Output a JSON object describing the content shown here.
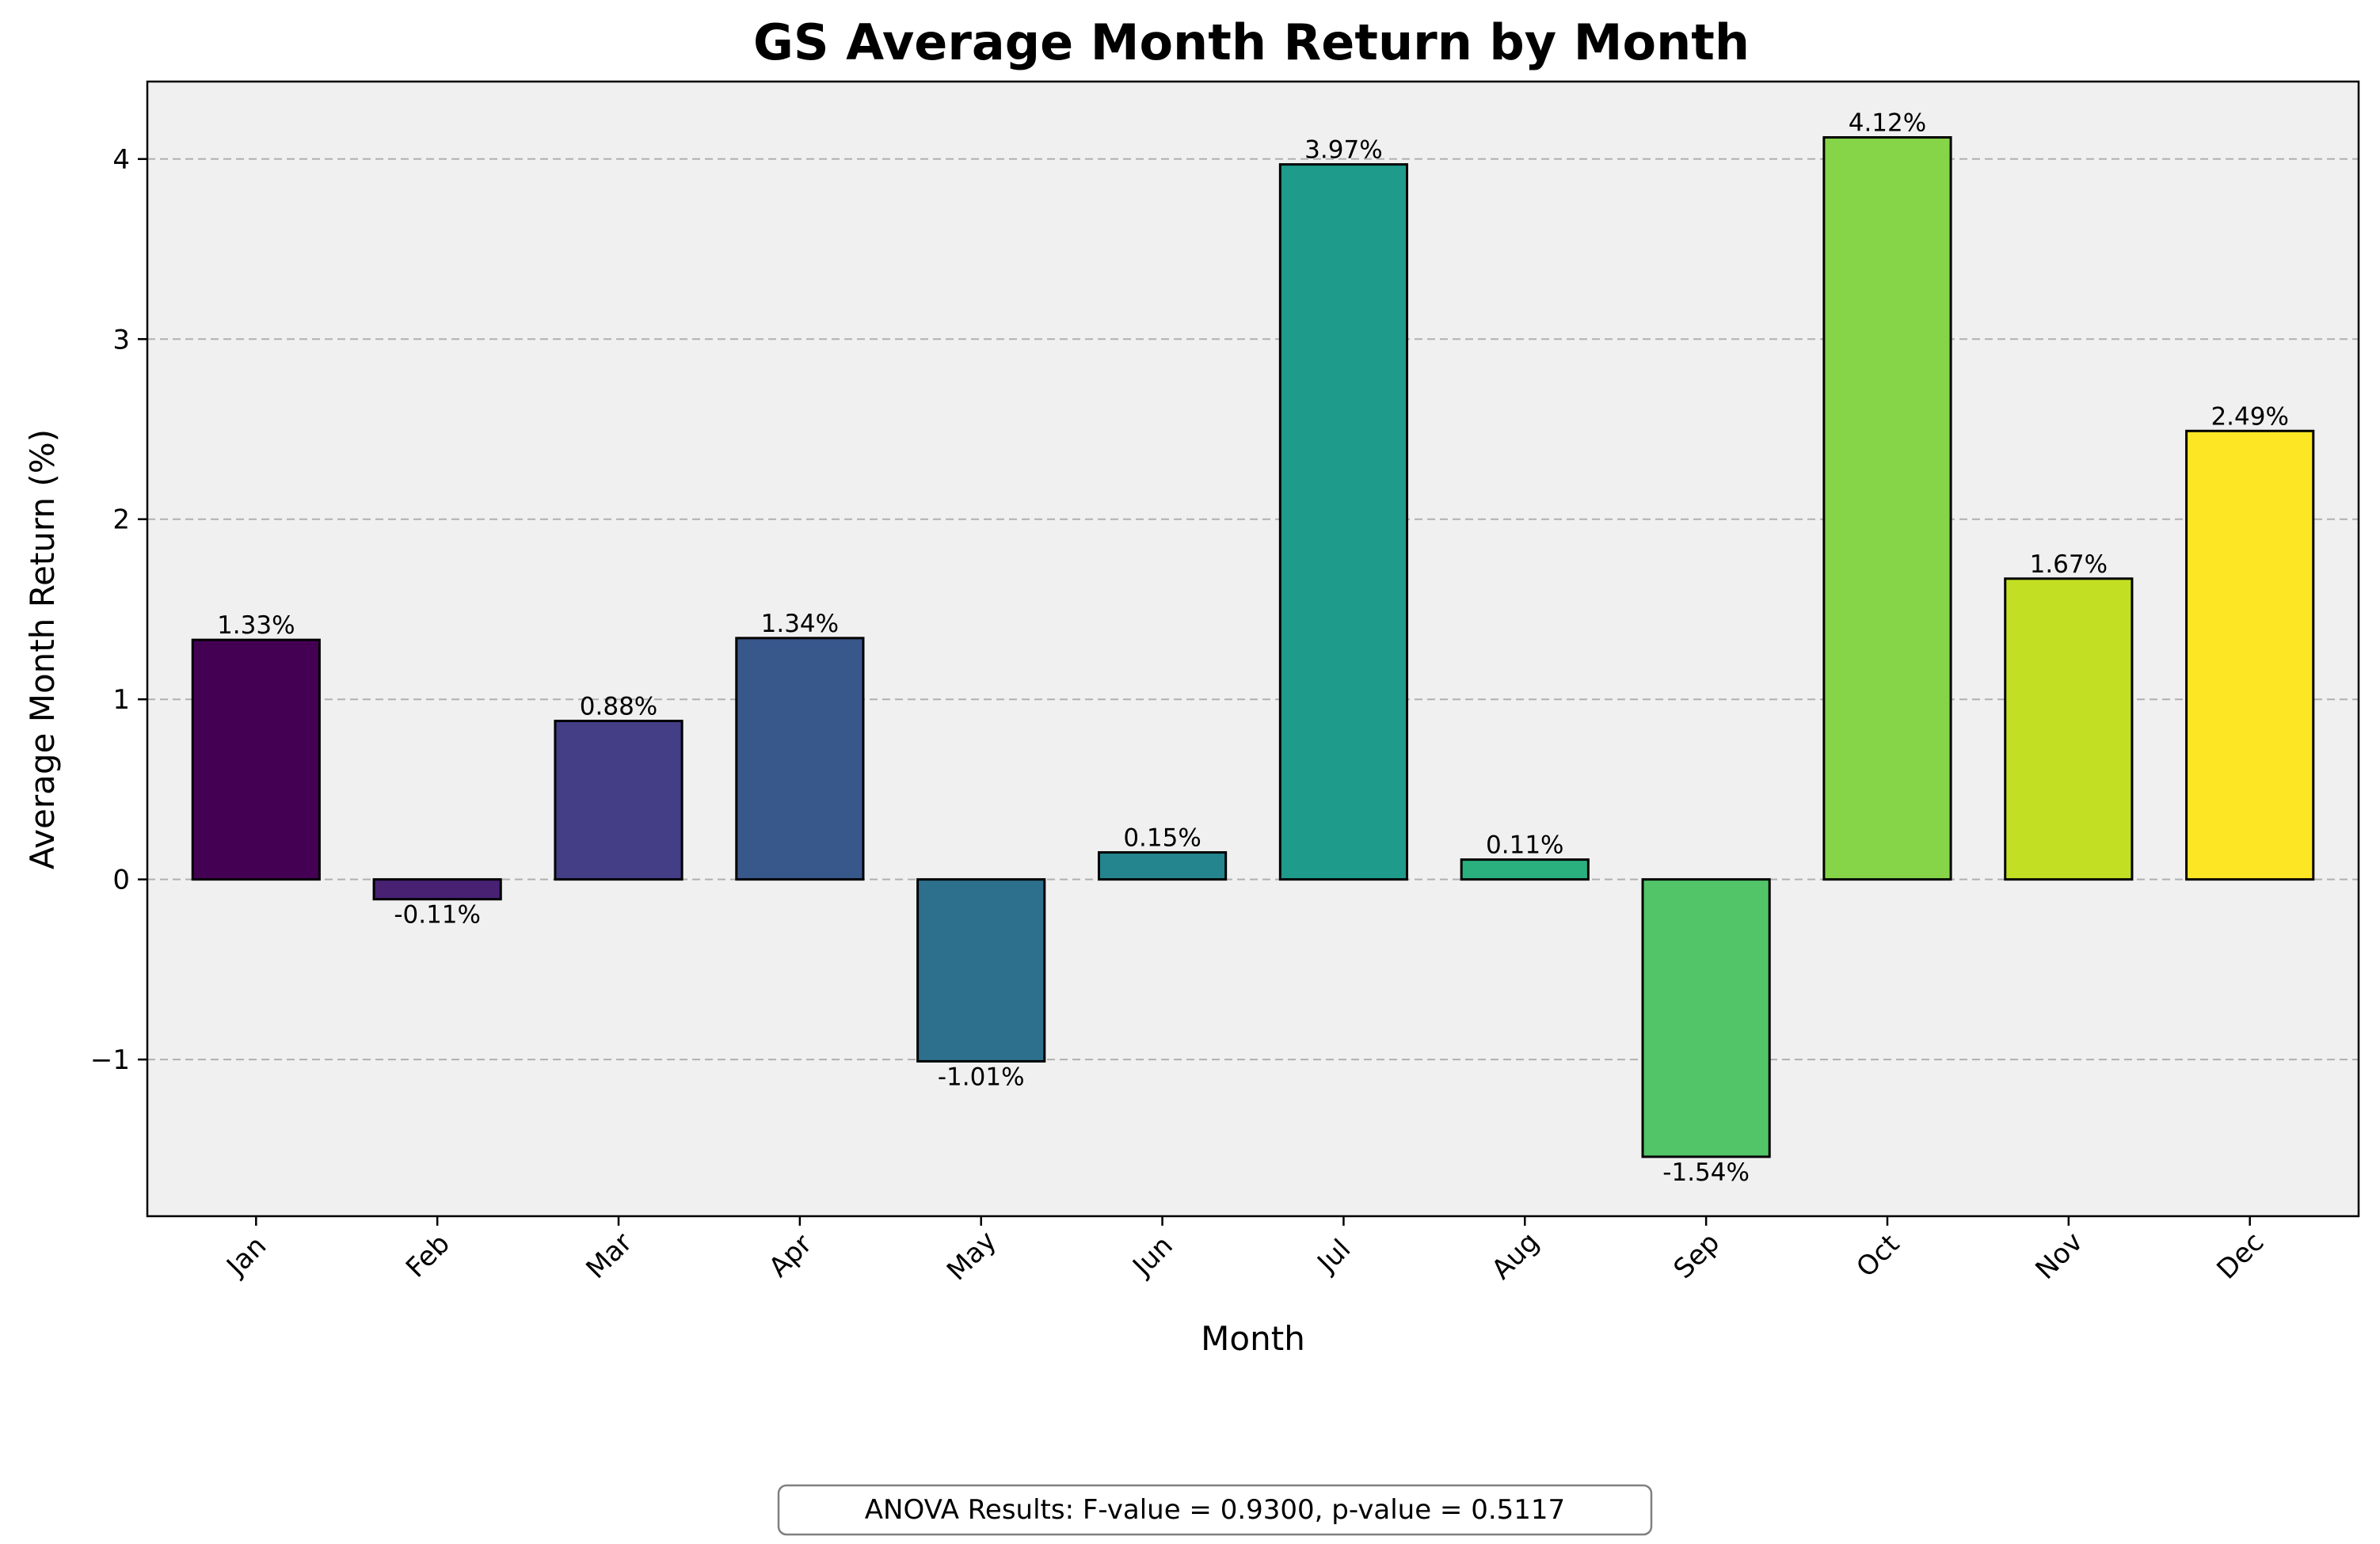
{
  "chart_data": {
    "type": "bar",
    "title": "GS Average Month Return by Month",
    "xlabel": "Month",
    "ylabel": "Average Month Return (%)",
    "categories": [
      "Jan",
      "Feb",
      "Mar",
      "Apr",
      "May",
      "Jun",
      "Jul",
      "Aug",
      "Sep",
      "Oct",
      "Nov",
      "Dec"
    ],
    "values": [
      1.33,
      -0.11,
      0.88,
      1.34,
      -1.01,
      0.15,
      3.97,
      0.11,
      -1.54,
      4.12,
      1.67,
      2.49
    ],
    "value_labels": [
      "1.33%",
      "-0.11%",
      "0.88%",
      "1.34%",
      "-1.01%",
      "0.15%",
      "3.97%",
      "0.11%",
      "-1.54%",
      "4.12%",
      "1.67%",
      "2.49%"
    ],
    "colors": [
      "#440154",
      "#482173",
      "#433e85",
      "#38588c",
      "#2d708e",
      "#25858e",
      "#1e9b8a",
      "#2ab07f",
      "#52c569",
      "#86d549",
      "#c2df23",
      "#fde725"
    ],
    "ylim": [
      -1.87,
      4.43
    ],
    "yticks": [
      -1,
      0,
      1,
      2,
      3,
      4
    ],
    "ytick_labels": [
      "−1",
      "0",
      "1",
      "2",
      "3",
      "4"
    ],
    "grid": "horizontal-dashed",
    "plot_background": "#f0f0f0",
    "annotation": "ANOVA Results: F-value = 0.9300, p-value = 0.5117"
  }
}
